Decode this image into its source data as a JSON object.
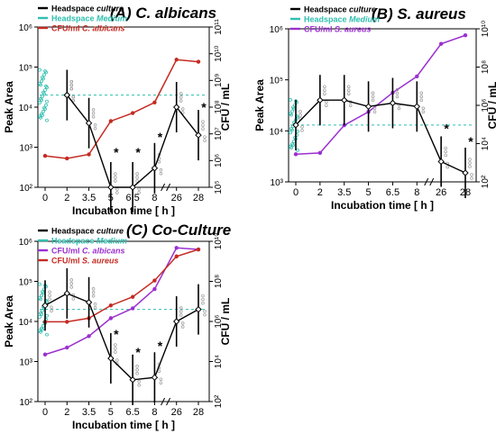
{
  "colors": {
    "culture": "#000000",
    "medium": "#2fbfb0",
    "calbicans": "#c42b22",
    "saureus_b": "#9b2fd0",
    "calbicans_c": "#9b2fd0",
    "saureus_c": "#c42b22"
  },
  "chart_data": [
    {
      "id": "A",
      "type": "line",
      "title_letter": "(A)",
      "title_species": "C. albicans",
      "xlabel": "Incubation time  [ h ]",
      "ylabel": "Peak Area",
      "y2label": "CFU / mL",
      "x_ticks": [
        "0",
        "2",
        "3.5",
        "5",
        "6.5",
        "8",
        "26",
        "28"
      ],
      "y_ticks": [
        "10²",
        "10³",
        "10⁴",
        "10⁵",
        "10⁶"
      ],
      "y2_ticks": [
        "10⁵",
        "10⁶",
        "10⁷",
        "10⁸",
        "10⁹",
        "10¹⁰",
        "10¹¹"
      ],
      "legend": [
        {
          "label": "Headspace",
          "italic": "culture",
          "color": "#000000"
        },
        {
          "label": "Headspace",
          "italic": "Medium",
          "color": "#2fbfb0"
        },
        {
          "label": "CFU/ml",
          "italic": "C. albicans",
          "color": "#c42b22"
        }
      ],
      "headspace_culture": {
        "x": [
          2,
          2,
          3.5,
          5,
          6.5,
          8,
          26,
          28
        ],
        "y": [
          20000,
          20000,
          4000,
          100,
          100,
          300,
          10000,
          2000
        ]
      },
      "headspace_medium_level": 20000,
      "cfu_calbicans": {
        "x": [
          0,
          2,
          3.5,
          5,
          6.5,
          8,
          26,
          28
        ],
        "y": [
          1500000,
          1200000,
          1700000,
          30000000,
          60000000,
          150000000,
          6000000000,
          5000000000
        ]
      },
      "significance": [
        "*",
        "*",
        "*",
        "*"
      ]
    },
    {
      "id": "B",
      "type": "line",
      "title_letter": "(B)",
      "title_species": "S. aureus",
      "xlabel": "Incubation time  [ h ]",
      "ylabel": "Peak Area",
      "y2label": "CFU / mL",
      "x_ticks": [
        "0",
        "2",
        "3.5",
        "5",
        "6.5",
        "8",
        "26",
        "28"
      ],
      "y_ticks": [
        "10³",
        "10⁴",
        "10⁵",
        "10⁶"
      ],
      "y2_ticks": [
        "10²",
        "10⁴",
        "10⁶",
        "10⁸",
        "10¹⁰"
      ],
      "legend": [
        {
          "label": "Headspace",
          "italic": "culture",
          "color": "#000000"
        },
        {
          "label": "Headspace",
          "italic": "Medium",
          "color": "#2fbfb0"
        },
        {
          "label": "CFU/ml",
          "italic": "S. aureus",
          "color": "#9b2fd0"
        }
      ],
      "headspace_culture": {
        "x": [
          0,
          2,
          3.5,
          5,
          6.5,
          8,
          26,
          28
        ],
        "y": [
          13000,
          40000,
          40000,
          30000,
          35000,
          30000,
          2500,
          1500
        ]
      },
      "headspace_medium_level": 13000,
      "cfu_saureus": {
        "x": [
          0,
          2,
          3.5,
          5,
          6.5,
          8,
          26,
          28
        ],
        "y": [
          500,
          600,
          30000,
          200000,
          3000000,
          30000000,
          3000000000,
          10000000000
        ]
      },
      "significance": [
        "*",
        "*"
      ]
    },
    {
      "id": "C",
      "type": "line",
      "title_letter": "(C)",
      "title_species": "Co-Culture",
      "xlabel": "Incubation time  [ h ]",
      "ylabel": "Peak Area",
      "y2label": "CFU / mL",
      "x_ticks": [
        "0",
        "2",
        "3.5",
        "5",
        "6.5",
        "8",
        "26",
        "28"
      ],
      "y_ticks": [
        "10²",
        "10³",
        "10⁴",
        "10⁵",
        "10⁶"
      ],
      "y2_ticks": [
        "10²",
        "10⁴",
        "10⁶",
        "10⁸",
        "10¹⁰"
      ],
      "legend": [
        {
          "label": "Headspace",
          "italic": "culture",
          "color": "#000000"
        },
        {
          "label": "Headspace",
          "italic": "Medium",
          "color": "#2fbfb0"
        },
        {
          "label": "CFU/ml",
          "italic": "C. albicans",
          "color": "#9b2fd0"
        },
        {
          "label": "CFU/ml",
          "italic": "S. aureus",
          "color": "#c42b22"
        }
      ],
      "headspace_culture": {
        "x": [
          0,
          2,
          3.5,
          5,
          6.5,
          8,
          26,
          28
        ],
        "y": [
          25000,
          50000,
          30000,
          1200,
          350,
          400,
          10000,
          20000
        ]
      },
      "headspace_medium_level": 20000,
      "cfu_calbicans": {
        "x": [
          0,
          2,
          3.5,
          5,
          6.5,
          8,
          26,
          28
        ],
        "y": [
          3000,
          8000,
          40000,
          500000,
          2000000,
          30000000,
          10000000000,
          8000000000
        ]
      },
      "cfu_saureus": {
        "x": [
          0,
          2,
          3.5,
          5,
          6.5,
          8,
          26,
          28
        ],
        "y": [
          300000,
          300000,
          500000,
          3000000,
          10000000,
          100000000,
          3000000000,
          8000000000
        ]
      },
      "significance": [
        "*",
        "*",
        "*"
      ]
    }
  ]
}
